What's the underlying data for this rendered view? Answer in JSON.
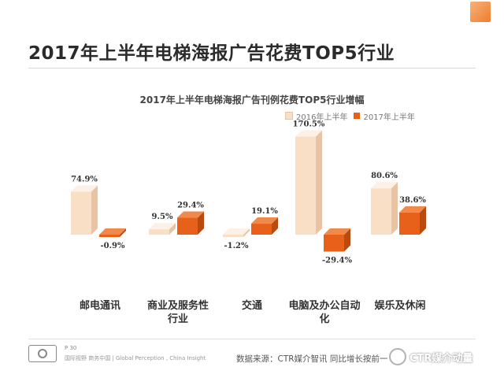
{
  "page": {
    "title": "2017年上半年电梯海报广告花费TOP5行业"
  },
  "chart_data": {
    "type": "bar",
    "title": "2017年上半年电梯海报广告刊例花费TOP5行业增幅",
    "categories": [
      "邮电通讯",
      "商业及服务性\n行业",
      "交通",
      "电脑及办公自动\n化",
      "娱乐及休闲"
    ],
    "series": [
      {
        "name": "2016年上半年",
        "values": [
          74.9,
          9.5,
          -1.2,
          170.5,
          80.6
        ],
        "labels": [
          "74.9%",
          "9.5%",
          "-1.2%",
          "170.5%",
          "80.6%"
        ]
      },
      {
        "name": "2017年上半年",
        "values": [
          -0.9,
          29.4,
          19.1,
          -29.4,
          38.6
        ],
        "labels": [
          "-0.9%",
          "29.4%",
          "19.1%",
          "-29.4%",
          "38.6%"
        ]
      }
    ],
    "legend_position": "top-right",
    "grid": false,
    "colors": {
      "series1": "#f9dfc6",
      "series1_side": "#e8c4a4",
      "series2": "#e8611a",
      "series2_side": "#b94a10"
    }
  },
  "footer": {
    "page_number": "P 30",
    "tagline": "国际视野  商务中国 | Global Perception , China Insight",
    "source": "数据来源：CTR媒介智讯   同比增长按前一",
    "watermark": "CTR媒介动量"
  }
}
